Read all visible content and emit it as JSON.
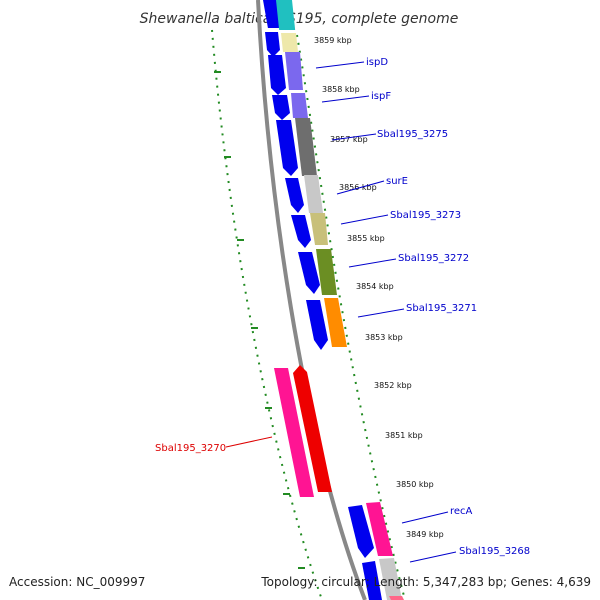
{
  "title": "Shewanella baltica OS195, complete genome",
  "footer": {
    "accession": "Accession: NC_009997",
    "summary": "Topology: circular; Length: 5,347,283 bp; Genes: 4,639"
  },
  "scale_labels": [
    "3859 kbp",
    "3858 kbp",
    "3857 kbp",
    "3856 kbp",
    "3855 kbp",
    "3854 kbp",
    "3853 kbp",
    "3852 kbp",
    "3851 kbp",
    "3850 kbp",
    "3849 kbp"
  ],
  "gene_labels": [
    {
      "text": "ispD",
      "color": "#0000cc"
    },
    {
      "text": "ispF",
      "color": "#0000cc"
    },
    {
      "text": "Sbal195_3275",
      "color": "#0000cc"
    },
    {
      "text": "surE",
      "color": "#0000cc"
    },
    {
      "text": "Sbal195_3273",
      "color": "#0000cc"
    },
    {
      "text": "Sbal195_3272",
      "color": "#0000cc"
    },
    {
      "text": "Sbal195_3271",
      "color": "#0000cc"
    },
    {
      "text": "Sbal195_3270",
      "color": "#dd0000"
    },
    {
      "text": "recA",
      "color": "#0000cc"
    },
    {
      "text": "Sbal195_3268",
      "color": "#0000cc"
    }
  ],
  "colors": {
    "strand_blue": "#0000ee",
    "backbone": "#777777",
    "tick_green": "#228b22",
    "pink": "#ff1493",
    "red": "#ee0000",
    "orange": "#ff8c00",
    "olive": "#6b8e23",
    "khaki": "#c8c07a",
    "lightgray": "#c8c8c8",
    "darkgray": "#6e6e6e",
    "purple": "#7b68ee",
    "cream": "#eee8aa",
    "cyan": "#20c0c0"
  }
}
